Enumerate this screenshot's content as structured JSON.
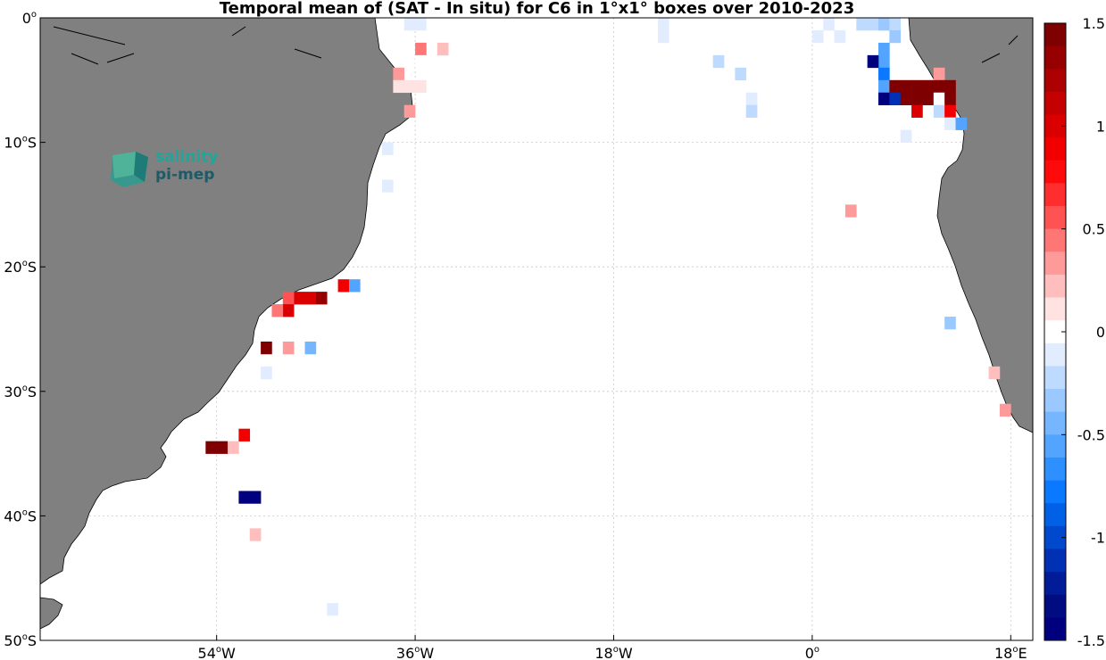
{
  "title": "Temporal mean of (SAT - In situ) for C6 in 1°x1° boxes over 2010-2023",
  "logo": {
    "line1": "salinity",
    "line2": "pi-mep"
  },
  "colors": {
    "land": "#808080",
    "ocean": "#ffffff",
    "grid": "#c8c8c8"
  },
  "map": {
    "lon_range": [
      -70,
      20
    ],
    "lat_range": [
      -50,
      0
    ],
    "xticks": [
      {
        "lon": -54,
        "num": "54",
        "hemi": "W"
      },
      {
        "lon": -36,
        "num": "36",
        "hemi": "W"
      },
      {
        "lon": -18,
        "num": "18",
        "hemi": "W"
      },
      {
        "lon": 0,
        "num": "0",
        "hemi": ""
      },
      {
        "lon": 18,
        "num": "18",
        "hemi": "E"
      }
    ],
    "yticks": [
      {
        "lat": 0,
        "num": "0",
        "hemi": ""
      },
      {
        "lat": -10,
        "num": "10",
        "hemi": "S"
      },
      {
        "lat": -20,
        "num": "20",
        "hemi": "S"
      },
      {
        "lat": -30,
        "num": "30",
        "hemi": "S"
      },
      {
        "lat": -40,
        "num": "40",
        "hemi": "S"
      },
      {
        "lat": -50,
        "num": "50",
        "hemi": "S"
      }
    ]
  },
  "colorbar": {
    "range": [
      -1.5,
      1.5
    ],
    "tick_values": [
      1.5,
      1,
      0.5,
      0,
      -0.5,
      -1,
      -1.5
    ],
    "tick_labels": [
      "1.5",
      "1",
      "0.5",
      "0",
      "-0.5",
      "-1",
      "-1.5"
    ],
    "colors_top_to_bottom": [
      "#7f0000",
      "#960000",
      "#ad0000",
      "#c40000",
      "#db0000",
      "#f20000",
      "#ff0a0a",
      "#ff2e2e",
      "#ff5252",
      "#ff7676",
      "#ff9a9a",
      "#ffbebe",
      "#ffe2e2",
      "#ffffff",
      "#e2ecff",
      "#bedaff",
      "#9ac8ff",
      "#76b6ff",
      "#52a4ff",
      "#2e8fff",
      "#0a78ff",
      "#0060e6",
      "#0048cc",
      "#0030b3",
      "#001c99",
      "#000c80",
      "#00007f"
    ]
  },
  "chart_data": {
    "type": "heatmap",
    "title": "Temporal mean of (SAT - In situ) for C6 in 1°x1° boxes over 2010-2023",
    "value_range": [
      -1.5,
      1.5
    ],
    "cells_lon_lat_value": [
      [
        -36.5,
        -0.5,
        -0.1
      ],
      [
        -35.5,
        -0.5,
        -0.1
      ],
      [
        -13.5,
        -0.5,
        -0.1
      ],
      [
        -13.5,
        -1.5,
        -0.1
      ],
      [
        0.5,
        -1.5,
        -0.1
      ],
      [
        1.5,
        -0.5,
        -0.1
      ],
      [
        2.5,
        -1.5,
        -0.15
      ],
      [
        4.5,
        -0.5,
        -0.2
      ],
      [
        5.5,
        -0.5,
        -0.2
      ],
      [
        6.5,
        -0.5,
        -0.3
      ],
      [
        7.5,
        -0.5,
        -0.2
      ],
      [
        7.5,
        -1.5,
        -0.3
      ],
      [
        -35.5,
        -2.5,
        0.45
      ],
      [
        -33.5,
        -2.5,
        0.25
      ],
      [
        6.5,
        -2.5,
        -0.5
      ],
      [
        6.5,
        -3.5,
        -0.6
      ],
      [
        5.5,
        -3.5,
        -1.5
      ],
      [
        6.5,
        -4.5,
        -0.8
      ],
      [
        6.5,
        -5.5,
        -0.6
      ],
      [
        7.5,
        -5.5,
        1.5
      ],
      [
        8.5,
        -5.5,
        1.5
      ],
      [
        9.5,
        -5.5,
        1.5
      ],
      [
        10.5,
        -5.5,
        1.5
      ],
      [
        11.5,
        -4.5,
        0.3
      ],
      [
        11.5,
        -5.5,
        1.5
      ],
      [
        12.5,
        -5.5,
        1.5
      ],
      [
        6.5,
        -6.5,
        -1.4
      ],
      [
        7.5,
        -6.5,
        -1.1
      ],
      [
        8.5,
        -6.5,
        1.5
      ],
      [
        9.5,
        -6.5,
        1.5
      ],
      [
        10.5,
        -6.5,
        1.5
      ],
      [
        11.5,
        -6.5,
        0.0
      ],
      [
        12.5,
        -6.5,
        1.5
      ],
      [
        9.5,
        -7.5,
        1.0
      ],
      [
        11.5,
        -7.5,
        -0.2
      ],
      [
        12.5,
        -7.5,
        0.9
      ],
      [
        12.5,
        -8.5,
        -0.15
      ],
      [
        13.5,
        -8.5,
        -0.5
      ],
      [
        -37.5,
        -4.5,
        0.3
      ],
      [
        -37.5,
        -5.5,
        0.1
      ],
      [
        -36.5,
        -5.5,
        0.1
      ],
      [
        -35.5,
        -5.5,
        0.1
      ],
      [
        -36.5,
        -7.5,
        0.35
      ],
      [
        -8.5,
        -3.5,
        -0.2
      ],
      [
        -6.5,
        -4.5,
        -0.2
      ],
      [
        -5.5,
        -6.5,
        -0.15
      ],
      [
        -5.5,
        -7.5,
        -0.2
      ],
      [
        -35.5,
        -3.5,
        0.0
      ],
      [
        -38.5,
        -10.5,
        -0.15
      ],
      [
        -38.5,
        -13.5,
        -0.15
      ],
      [
        8.5,
        -9.5,
        -0.15
      ],
      [
        3.5,
        -15.5,
        0.3
      ],
      [
        12.5,
        -24.5,
        -0.3
      ],
      [
        16.5,
        -28.5,
        0.25
      ],
      [
        17.5,
        -31.5,
        0.3
      ],
      [
        -42.5,
        -21.5,
        0.9
      ],
      [
        -41.5,
        -21.5,
        -0.5
      ],
      [
        -44.5,
        -22.5,
        1.3
      ],
      [
        -45.5,
        -22.5,
        0.95
      ],
      [
        -46.5,
        -22.5,
        0.95
      ],
      [
        -47.5,
        -22.5,
        0.6
      ],
      [
        -47.5,
        -23.5,
        1.0
      ],
      [
        -48.5,
        -23.5,
        0.5
      ],
      [
        -49.5,
        -26.5,
        1.4
      ],
      [
        -47.5,
        -26.5,
        0.3
      ],
      [
        -45.5,
        -26.5,
        -0.4
      ],
      [
        -49.5,
        -28.5,
        -0.15
      ],
      [
        -53.5,
        -34.5,
        1.5
      ],
      [
        -54.5,
        -34.5,
        1.5
      ],
      [
        -52.5,
        -34.5,
        0.2
      ],
      [
        -51.5,
        -33.5,
        0.9
      ],
      [
        -51.5,
        -38.5,
        -1.4
      ],
      [
        -50.5,
        -38.5,
        -1.5
      ],
      [
        -50.5,
        -41.5,
        0.25
      ],
      [
        -43.5,
        -47.5,
        -0.15
      ]
    ]
  }
}
